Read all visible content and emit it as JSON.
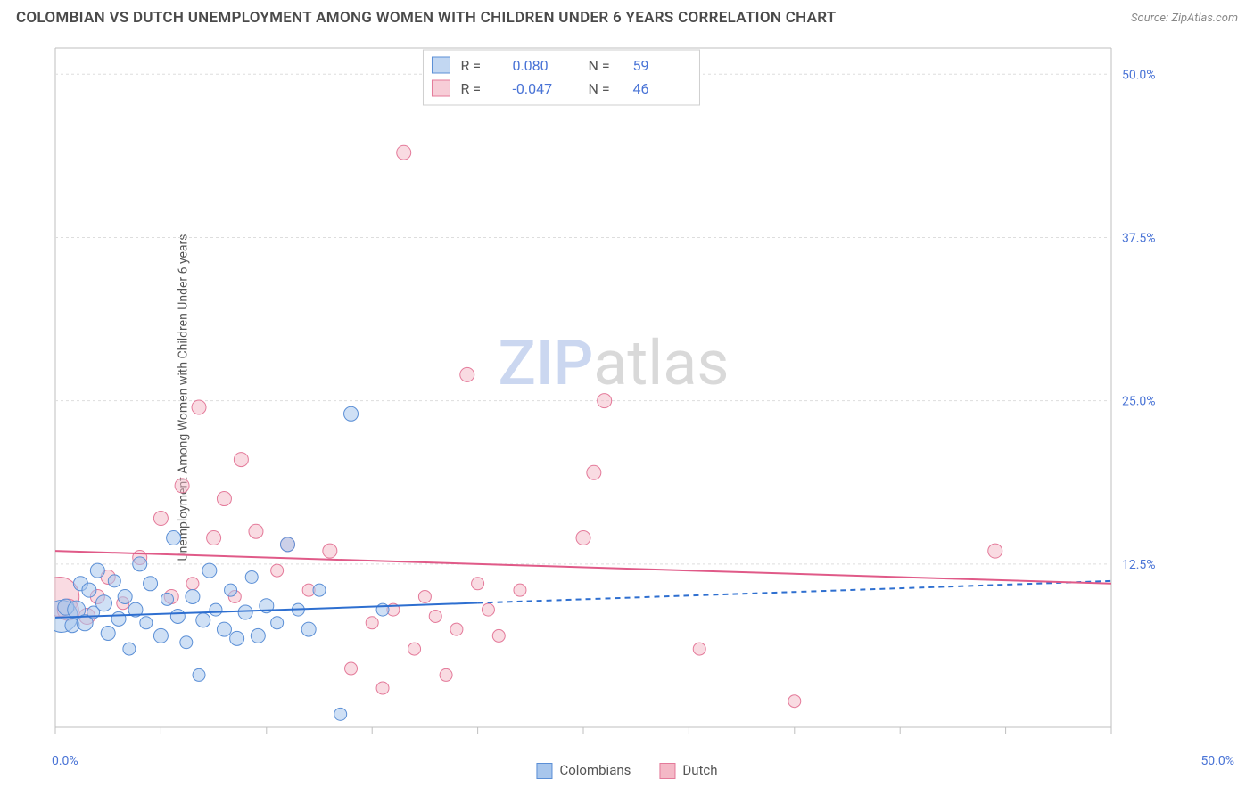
{
  "header": {
    "title": "COLOMBIAN VS DUTCH UNEMPLOYMENT AMONG WOMEN WITH CHILDREN UNDER 6 YEARS CORRELATION CHART",
    "source_prefix": "Source: ",
    "source_name": "ZipAtlas.com"
  },
  "chart": {
    "type": "scatter",
    "ylabel": "Unemployment Among Women with Children Under 6 years",
    "xlim": [
      0,
      50
    ],
    "ylim": [
      0,
      52
    ],
    "x_ticks": [
      0,
      5,
      10,
      15,
      20,
      25,
      30,
      35,
      40,
      45,
      50
    ],
    "y_gridlines": [
      12.5,
      25.0,
      37.5,
      50.0
    ],
    "y_tick_labels": [
      "12.5%",
      "25.0%",
      "37.5%",
      "50.0%"
    ],
    "x_axis_min_label": "0.0%",
    "x_axis_max_label": "50.0%",
    "background_color": "#ffffff",
    "grid_color": "#dddddd",
    "axis_color": "#bfbfbf",
    "tick_label_color": "#4a74d6",
    "series": [
      {
        "name": "Colombians",
        "fill": "#a8c6ec",
        "fill_opacity": 0.55,
        "stroke": "#5b8fd6",
        "r_value": "0.080",
        "n_value": "59",
        "trend": {
          "y_start": 8.4,
          "y_end": 11.2,
          "solid_until_x": 20,
          "color": "#2e6fd0",
          "width": 2
        },
        "points": [
          {
            "x": 0.3,
            "y": 8.5,
            "r": 18
          },
          {
            "x": 0.5,
            "y": 9.2,
            "r": 9
          },
          {
            "x": 0.8,
            "y": 7.8,
            "r": 8
          },
          {
            "x": 1.0,
            "y": 9.0,
            "r": 10
          },
          {
            "x": 1.2,
            "y": 11.0,
            "r": 8
          },
          {
            "x": 1.4,
            "y": 8.0,
            "r": 9
          },
          {
            "x": 1.6,
            "y": 10.5,
            "r": 8
          },
          {
            "x": 1.8,
            "y": 8.8,
            "r": 7
          },
          {
            "x": 2.0,
            "y": 12.0,
            "r": 8
          },
          {
            "x": 2.3,
            "y": 9.5,
            "r": 9
          },
          {
            "x": 2.5,
            "y": 7.2,
            "r": 8
          },
          {
            "x": 2.8,
            "y": 11.2,
            "r": 7
          },
          {
            "x": 3.0,
            "y": 8.3,
            "r": 8
          },
          {
            "x": 3.3,
            "y": 10.0,
            "r": 8
          },
          {
            "x": 3.5,
            "y": 6.0,
            "r": 7
          },
          {
            "x": 3.8,
            "y": 9.0,
            "r": 8
          },
          {
            "x": 4.0,
            "y": 12.5,
            "r": 8
          },
          {
            "x": 4.3,
            "y": 8.0,
            "r": 7
          },
          {
            "x": 4.5,
            "y": 11.0,
            "r": 8
          },
          {
            "x": 5.0,
            "y": 7.0,
            "r": 8
          },
          {
            "x": 5.3,
            "y": 9.8,
            "r": 7
          },
          {
            "x": 5.6,
            "y": 14.5,
            "r": 8
          },
          {
            "x": 5.8,
            "y": 8.5,
            "r": 8
          },
          {
            "x": 6.2,
            "y": 6.5,
            "r": 7
          },
          {
            "x": 6.5,
            "y": 10.0,
            "r": 8
          },
          {
            "x": 6.8,
            "y": 4.0,
            "r": 7
          },
          {
            "x": 7.0,
            "y": 8.2,
            "r": 8
          },
          {
            "x": 7.3,
            "y": 12.0,
            "r": 8
          },
          {
            "x": 7.6,
            "y": 9.0,
            "r": 7
          },
          {
            "x": 8.0,
            "y": 7.5,
            "r": 8
          },
          {
            "x": 8.3,
            "y": 10.5,
            "r": 7
          },
          {
            "x": 8.6,
            "y": 6.8,
            "r": 8
          },
          {
            "x": 9.0,
            "y": 8.8,
            "r": 8
          },
          {
            "x": 9.3,
            "y": 11.5,
            "r": 7
          },
          {
            "x": 9.6,
            "y": 7.0,
            "r": 8
          },
          {
            "x": 10.0,
            "y": 9.3,
            "r": 8
          },
          {
            "x": 10.5,
            "y": 8.0,
            "r": 7
          },
          {
            "x": 11.0,
            "y": 14.0,
            "r": 8
          },
          {
            "x": 11.5,
            "y": 9.0,
            "r": 7
          },
          {
            "x": 12.0,
            "y": 7.5,
            "r": 8
          },
          {
            "x": 12.5,
            "y": 10.5,
            "r": 7
          },
          {
            "x": 13.5,
            "y": 1.0,
            "r": 7
          },
          {
            "x": 14.0,
            "y": 24.0,
            "r": 8
          },
          {
            "x": 15.5,
            "y": 9.0,
            "r": 7
          }
        ]
      },
      {
        "name": "Dutch",
        "fill": "#f4b8c6",
        "fill_opacity": 0.5,
        "stroke": "#e47a9a",
        "r_value": "-0.047",
        "n_value": "46",
        "trend": {
          "y_start": 13.5,
          "y_end": 11.0,
          "solid_until_x": 50,
          "color": "#e05a88",
          "width": 2
        },
        "points": [
          {
            "x": 0.2,
            "y": 10.0,
            "r": 22
          },
          {
            "x": 0.6,
            "y": 9.0,
            "r": 12
          },
          {
            "x": 1.5,
            "y": 8.5,
            "r": 9
          },
          {
            "x": 2.0,
            "y": 10.0,
            "r": 8
          },
          {
            "x": 2.5,
            "y": 11.5,
            "r": 8
          },
          {
            "x": 3.2,
            "y": 9.5,
            "r": 7
          },
          {
            "x": 4.0,
            "y": 13.0,
            "r": 8
          },
          {
            "x": 5.0,
            "y": 16.0,
            "r": 8
          },
          {
            "x": 5.5,
            "y": 10.0,
            "r": 8
          },
          {
            "x": 6.0,
            "y": 18.5,
            "r": 8
          },
          {
            "x": 6.5,
            "y": 11.0,
            "r": 7
          },
          {
            "x": 6.8,
            "y": 24.5,
            "r": 8
          },
          {
            "x": 7.5,
            "y": 14.5,
            "r": 8
          },
          {
            "x": 8.0,
            "y": 17.5,
            "r": 8
          },
          {
            "x": 8.5,
            "y": 10.0,
            "r": 7
          },
          {
            "x": 8.8,
            "y": 20.5,
            "r": 8
          },
          {
            "x": 9.5,
            "y": 15.0,
            "r": 8
          },
          {
            "x": 10.5,
            "y": 12.0,
            "r": 7
          },
          {
            "x": 11.0,
            "y": 14.0,
            "r": 8
          },
          {
            "x": 12.0,
            "y": 10.5,
            "r": 7
          },
          {
            "x": 13.0,
            "y": 13.5,
            "r": 8
          },
          {
            "x": 14.0,
            "y": 4.5,
            "r": 7
          },
          {
            "x": 15.0,
            "y": 8.0,
            "r": 7
          },
          {
            "x": 15.5,
            "y": 3.0,
            "r": 7
          },
          {
            "x": 16.0,
            "y": 9.0,
            "r": 7
          },
          {
            "x": 16.5,
            "y": 44.0,
            "r": 8
          },
          {
            "x": 17.0,
            "y": 6.0,
            "r": 7
          },
          {
            "x": 17.5,
            "y": 10.0,
            "r": 7
          },
          {
            "x": 18.0,
            "y": 8.5,
            "r": 7
          },
          {
            "x": 18.5,
            "y": 4.0,
            "r": 7
          },
          {
            "x": 19.0,
            "y": 7.5,
            "r": 7
          },
          {
            "x": 19.5,
            "y": 27.0,
            "r": 8
          },
          {
            "x": 20.0,
            "y": 11.0,
            "r": 7
          },
          {
            "x": 20.5,
            "y": 9.0,
            "r": 7
          },
          {
            "x": 21.0,
            "y": 7.0,
            "r": 7
          },
          {
            "x": 22.0,
            "y": 10.5,
            "r": 7
          },
          {
            "x": 25.0,
            "y": 14.5,
            "r": 8
          },
          {
            "x": 25.5,
            "y": 19.5,
            "r": 8
          },
          {
            "x": 26.0,
            "y": 25.0,
            "r": 8
          },
          {
            "x": 30.5,
            "y": 6.0,
            "r": 7
          },
          {
            "x": 35.0,
            "y": 2.0,
            "r": 7
          },
          {
            "x": 44.5,
            "y": 13.5,
            "r": 8
          }
        ]
      }
    ],
    "legend_top": {
      "r_label": "R =",
      "n_label": "N ="
    },
    "legend_bottom": [
      {
        "label": "Colombians",
        "fill": "#a8c6ec",
        "stroke": "#5b8fd6"
      },
      {
        "label": "Dutch",
        "fill": "#f4b8c6",
        "stroke": "#e47a9a"
      }
    ],
    "watermark": {
      "z": "ZIP",
      "rest": "atlas"
    }
  }
}
